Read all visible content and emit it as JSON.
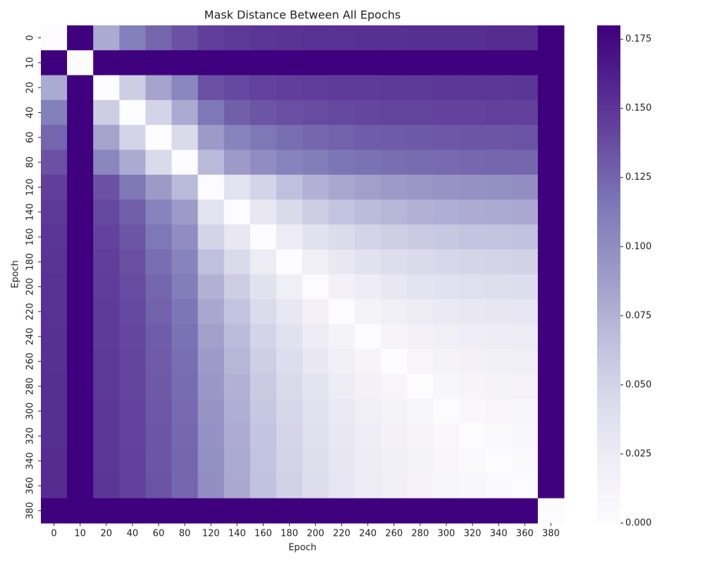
{
  "chart_data": {
    "type": "heatmap",
    "title": "Mask Distance Between All Epochs",
    "x_label": "Epoch",
    "y_label": "Epoch",
    "categories": [
      "0",
      "10",
      "20",
      "40",
      "60",
      "80",
      "120",
      "140",
      "160",
      "180",
      "200",
      "220",
      "240",
      "260",
      "280",
      "300",
      "320",
      "340",
      "360",
      "380"
    ],
    "values": [
      [
        0,
        0.18,
        0.08,
        0.11,
        0.125,
        0.135,
        0.145,
        0.148,
        0.15,
        0.151,
        0.152,
        0.152,
        0.153,
        0.153,
        0.154,
        0.154,
        0.154,
        0.155,
        0.155,
        0.18
      ],
      [
        0.18,
        0,
        0.18,
        0.18,
        0.18,
        0.18,
        0.18,
        0.18,
        0.18,
        0.18,
        0.18,
        0.18,
        0.18,
        0.18,
        0.18,
        0.18,
        0.18,
        0.18,
        0.18,
        0.18
      ],
      [
        0.08,
        0.18,
        0,
        0.055,
        0.085,
        0.105,
        0.135,
        0.14,
        0.143,
        0.145,
        0.146,
        0.147,
        0.147,
        0.148,
        0.148,
        0.149,
        0.149,
        0.149,
        0.15,
        0.18
      ],
      [
        0.11,
        0.18,
        0.055,
        0,
        0.05,
        0.08,
        0.115,
        0.128,
        0.133,
        0.136,
        0.138,
        0.14,
        0.141,
        0.142,
        0.142,
        0.143,
        0.143,
        0.144,
        0.144,
        0.18
      ],
      [
        0.125,
        0.18,
        0.085,
        0.05,
        0,
        0.045,
        0.09,
        0.108,
        0.115,
        0.12,
        0.124,
        0.127,
        0.129,
        0.13,
        0.131,
        0.132,
        0.133,
        0.133,
        0.134,
        0.18
      ],
      [
        0.135,
        0.18,
        0.105,
        0.08,
        0.045,
        0,
        0.07,
        0.09,
        0.1,
        0.107,
        0.112,
        0.116,
        0.118,
        0.12,
        0.121,
        0.122,
        0.123,
        0.124,
        0.124,
        0.18
      ],
      [
        0.145,
        0.18,
        0.135,
        0.115,
        0.09,
        0.07,
        0,
        0.035,
        0.05,
        0.065,
        0.075,
        0.082,
        0.087,
        0.09,
        0.093,
        0.095,
        0.097,
        0.098,
        0.099,
        0.18
      ],
      [
        0.148,
        0.18,
        0.14,
        0.128,
        0.108,
        0.09,
        0.035,
        0,
        0.03,
        0.045,
        0.055,
        0.063,
        0.068,
        0.072,
        0.075,
        0.077,
        0.079,
        0.08,
        0.081,
        0.18
      ],
      [
        0.15,
        0.18,
        0.143,
        0.133,
        0.115,
        0.1,
        0.05,
        0.03,
        0,
        0.025,
        0.036,
        0.044,
        0.05,
        0.054,
        0.057,
        0.06,
        0.062,
        0.063,
        0.064,
        0.18
      ],
      [
        0.151,
        0.18,
        0.145,
        0.136,
        0.12,
        0.107,
        0.065,
        0.045,
        0.025,
        0,
        0.02,
        0.03,
        0.036,
        0.041,
        0.045,
        0.047,
        0.049,
        0.05,
        0.051,
        0.18
      ],
      [
        0.152,
        0.18,
        0.146,
        0.138,
        0.124,
        0.112,
        0.075,
        0.055,
        0.036,
        0.02,
        0,
        0.016,
        0.024,
        0.03,
        0.034,
        0.037,
        0.039,
        0.04,
        0.041,
        0.18
      ],
      [
        0.152,
        0.18,
        0.147,
        0.14,
        0.127,
        0.116,
        0.082,
        0.063,
        0.044,
        0.03,
        0.016,
        0,
        0.013,
        0.019,
        0.024,
        0.027,
        0.029,
        0.031,
        0.032,
        0.18
      ],
      [
        0.153,
        0.18,
        0.147,
        0.141,
        0.129,
        0.118,
        0.087,
        0.068,
        0.05,
        0.036,
        0.024,
        0.013,
        0,
        0.011,
        0.016,
        0.019,
        0.022,
        0.024,
        0.025,
        0.18
      ],
      [
        0.153,
        0.18,
        0.148,
        0.142,
        0.13,
        0.12,
        0.09,
        0.072,
        0.054,
        0.041,
        0.03,
        0.019,
        0.011,
        0,
        0.009,
        0.013,
        0.016,
        0.018,
        0.019,
        0.18
      ],
      [
        0.154,
        0.18,
        0.148,
        0.142,
        0.131,
        0.121,
        0.093,
        0.075,
        0.057,
        0.045,
        0.034,
        0.024,
        0.016,
        0.009,
        0,
        0.008,
        0.011,
        0.013,
        0.014,
        0.18
      ],
      [
        0.154,
        0.18,
        0.149,
        0.143,
        0.132,
        0.122,
        0.095,
        0.077,
        0.06,
        0.047,
        0.037,
        0.027,
        0.019,
        0.013,
        0.008,
        0,
        0.006,
        0.009,
        0.01,
        0.18
      ],
      [
        0.154,
        0.18,
        0.149,
        0.143,
        0.133,
        0.123,
        0.097,
        0.079,
        0.062,
        0.049,
        0.039,
        0.029,
        0.022,
        0.016,
        0.011,
        0.006,
        0,
        0.005,
        0.007,
        0.18
      ],
      [
        0.155,
        0.18,
        0.149,
        0.144,
        0.133,
        0.124,
        0.098,
        0.08,
        0.063,
        0.05,
        0.04,
        0.031,
        0.024,
        0.018,
        0.013,
        0.009,
        0.005,
        0,
        0.004,
        0.18
      ],
      [
        0.155,
        0.18,
        0.15,
        0.144,
        0.134,
        0.124,
        0.099,
        0.081,
        0.064,
        0.051,
        0.041,
        0.032,
        0.025,
        0.019,
        0.014,
        0.01,
        0.007,
        0.004,
        0,
        0.18
      ],
      [
        0.18,
        0.18,
        0.18,
        0.18,
        0.18,
        0.18,
        0.18,
        0.18,
        0.18,
        0.18,
        0.18,
        0.18,
        0.18,
        0.18,
        0.18,
        0.18,
        0.18,
        0.18,
        0.18,
        0
      ]
    ],
    "colormap": [
      "#fcfbfd",
      "#efedf5",
      "#dadaeb",
      "#bcbddc",
      "#9e9ac8",
      "#807dba",
      "#6a51a3",
      "#54278f",
      "#3f007d"
    ],
    "clim": [
      0,
      0.18
    ],
    "cticks": [
      {
        "value": 0,
        "label": "0.000"
      },
      {
        "value": 0.025,
        "label": "0.025"
      },
      {
        "value": 0.05,
        "label": "0.050"
      },
      {
        "value": 0.075,
        "label": "0.075"
      },
      {
        "value": 0.1,
        "label": "0.100"
      },
      {
        "value": 0.125,
        "label": "0.125"
      },
      {
        "value": 0.15,
        "label": "0.150"
      },
      {
        "value": 0.175,
        "label": "0.175"
      }
    ]
  }
}
